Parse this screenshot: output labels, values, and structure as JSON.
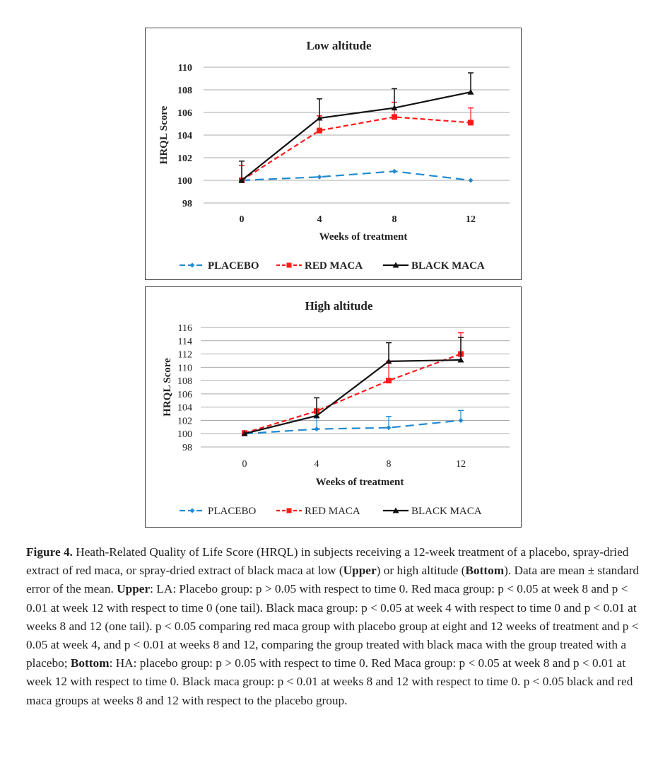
{
  "chart_data": [
    {
      "type": "line",
      "title": "Low altitude",
      "xlabel": "Weeks of treatment",
      "ylabel": "HRQL Score",
      "x": [
        0,
        4,
        8,
        12
      ],
      "ylim": [
        98,
        110
      ],
      "yticks": [
        98,
        100,
        102,
        104,
        106,
        108,
        110
      ],
      "grid": true,
      "legend": "bottom",
      "series": [
        {
          "name": "PLACEBO",
          "color": "#1f8ad0",
          "marker": "diamond",
          "dash": "dashed",
          "values": [
            100,
            100.3,
            100.8,
            100
          ],
          "error": [
            0,
            0,
            0,
            0
          ]
        },
        {
          "name": "RED MACA",
          "color": "#ff1a1a",
          "marker": "square",
          "dash": "dashed",
          "values": [
            100,
            104.4,
            105.6,
            105.1
          ],
          "error": [
            1.3,
            1.3,
            1.3,
            1.3
          ]
        },
        {
          "name": "BLACK MACA",
          "color": "#111111",
          "marker": "triangle",
          "dash": "solid",
          "values": [
            100,
            105.5,
            106.4,
            107.8
          ],
          "error": [
            1.7,
            1.7,
            1.7,
            1.7
          ]
        }
      ]
    },
    {
      "type": "line",
      "title": "High altitude",
      "xlabel": "Weeks of treatment",
      "ylabel": "HRQL Score",
      "x": [
        0,
        4,
        8,
        12
      ],
      "ylim": [
        98,
        116
      ],
      "yticks": [
        98,
        100,
        102,
        104,
        106,
        108,
        110,
        112,
        114,
        116
      ],
      "grid": true,
      "legend": "bottom",
      "series": [
        {
          "name": "PLACEBO",
          "color": "#1f8ad0",
          "marker": "diamond",
          "dash": "dashed",
          "values": [
            100,
            100.7,
            100.9,
            102
          ],
          "error": [
            0,
            1.8,
            1.7,
            1.5
          ]
        },
        {
          "name": "RED MACA",
          "color": "#ff1a1a",
          "marker": "square",
          "dash": "dashed",
          "values": [
            100.1,
            103.4,
            108,
            112
          ],
          "error": [
            0,
            0,
            2.9,
            3.2
          ]
        },
        {
          "name": "BLACK MACA",
          "color": "#111111",
          "marker": "triangle",
          "dash": "solid",
          "values": [
            100,
            102.7,
            110.9,
            111.1
          ],
          "error": [
            0,
            2.7,
            2.8,
            3.4
          ]
        }
      ]
    }
  ],
  "caption": {
    "label": "Figure 4.",
    "text": [
      " Heath-Related Quality of Life Score (HRQL) in subjects receiving a 12-week treatment of a placebo, spray-dried extract of red maca, or spray-dried extract of black maca at low (",
      "Upper",
      ") or high altitude (",
      "Bottom",
      "). Data are mean ± standard error of the mean. ",
      "Upper",
      ": LA: Placebo group: p > 0.05 with respect to time 0. Red maca group: p < 0.05 at week 8 and p < 0.01 at week 12 with respect to time 0 (one tail). Black maca group: p < 0.05 at week 4 with respect to time 0 and p < 0.01 at weeks 8 and 12 (one tail). p < 0.05 comparing red maca group with placebo group at eight and 12 weeks of treatment and p < 0.05 at week 4, and p < 0.01 at weeks 8 and 12, comparing the group treated with black maca with the group treated with a placebo; ",
      "Bottom",
      ": HA: placebo group: p > 0.05 with respect to time 0. Red Maca group: p < 0.05 at week 8 and p < 0.01 at week 12 with respect to time 0. Black maca group: p < 0.01 at weeks 8 and 12 with respect to time 0. p < 0.05 black and red maca groups at weeks 8 and 12 with respect to the placebo group."
    ]
  }
}
